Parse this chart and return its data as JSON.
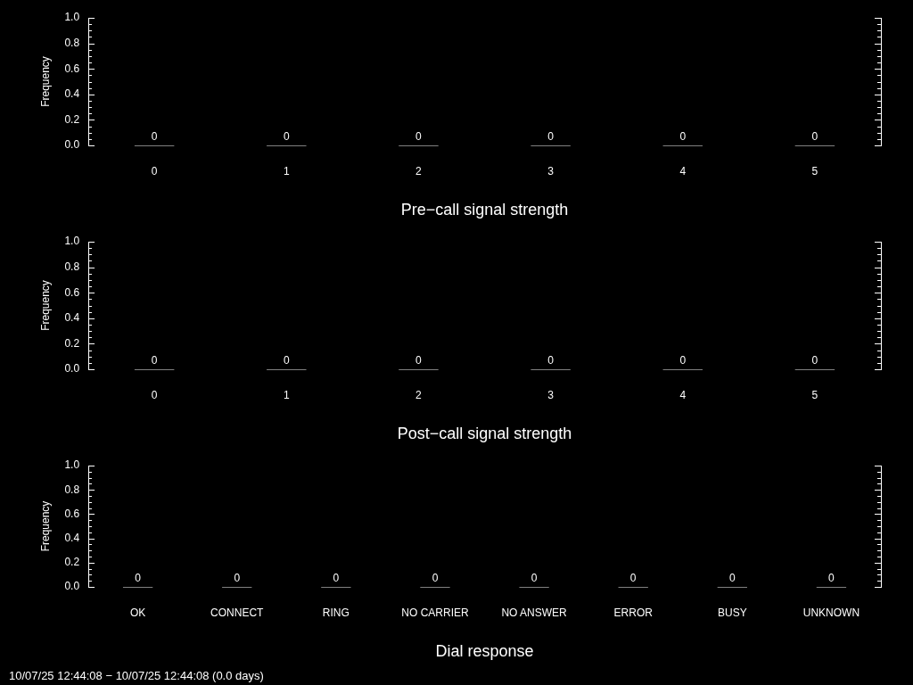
{
  "chart_data": [
    {
      "type": "bar",
      "xlabel": "Pre−call signal strength",
      "ylabel": "Frequency",
      "categories": [
        "0",
        "1",
        "2",
        "3",
        "4",
        "5"
      ],
      "values": [
        0,
        0,
        0,
        0,
        0,
        0
      ],
      "color": "#808080",
      "data_labels": true,
      "grid": false,
      "legend": false,
      "ylim": [
        0,
        1
      ],
      "yticks": [
        {
          "value": 0,
          "label": "0.0"
        },
        {
          "value": 0.05,
          "label": null
        },
        {
          "value": 0.1,
          "label": null
        },
        {
          "value": 0.15,
          "label": null
        },
        {
          "value": 0.2,
          "label": "0.2"
        },
        {
          "value": 0.25,
          "label": null
        },
        {
          "value": 0.3,
          "label": null
        },
        {
          "value": 0.35,
          "label": null
        },
        {
          "value": 0.4,
          "label": "0.4"
        },
        {
          "value": 0.45,
          "label": null
        },
        {
          "value": 0.5,
          "label": null
        },
        {
          "value": 0.55,
          "label": null
        },
        {
          "value": 0.6,
          "label": "0.6"
        },
        {
          "value": 0.65,
          "label": null
        },
        {
          "value": 0.7,
          "label": null
        },
        {
          "value": 0.75,
          "label": null
        },
        {
          "value": 0.8,
          "label": "0.8"
        },
        {
          "value": 0.85,
          "label": null
        },
        {
          "value": 0.9,
          "label": null
        },
        {
          "value": 0.95,
          "label": null
        },
        {
          "value": 1,
          "label": "1.0"
        }
      ]
    },
    {
      "type": "bar",
      "xlabel": "Post−call signal strength",
      "ylabel": "Frequency",
      "categories": [
        "0",
        "1",
        "2",
        "3",
        "4",
        "5"
      ],
      "values": [
        0,
        0,
        0,
        0,
        0,
        0
      ],
      "color": "#808080",
      "data_labels": true,
      "grid": false,
      "legend": false,
      "ylim": [
        0,
        1
      ],
      "yticks": [
        {
          "value": 0,
          "label": "0.0"
        },
        {
          "value": 0.05,
          "label": null
        },
        {
          "value": 0.1,
          "label": null
        },
        {
          "value": 0.15,
          "label": null
        },
        {
          "value": 0.2,
          "label": "0.2"
        },
        {
          "value": 0.25,
          "label": null
        },
        {
          "value": 0.3,
          "label": null
        },
        {
          "value": 0.35,
          "label": null
        },
        {
          "value": 0.4,
          "label": "0.4"
        },
        {
          "value": 0.45,
          "label": null
        },
        {
          "value": 0.5,
          "label": null
        },
        {
          "value": 0.55,
          "label": null
        },
        {
          "value": 0.6,
          "label": "0.6"
        },
        {
          "value": 0.65,
          "label": null
        },
        {
          "value": 0.7,
          "label": null
        },
        {
          "value": 0.75,
          "label": null
        },
        {
          "value": 0.8,
          "label": "0.8"
        },
        {
          "value": 0.85,
          "label": null
        },
        {
          "value": 0.9,
          "label": null
        },
        {
          "value": 0.95,
          "label": null
        },
        {
          "value": 1,
          "label": "1.0"
        }
      ]
    },
    {
      "type": "bar",
      "xlabel": "Dial response",
      "ylabel": "Frequency",
      "categories": [
        "OK",
        "CONNECT",
        "RING",
        "NO CARRIER",
        "NO ANSWER",
        "ERROR",
        "BUSY",
        "UNKNOWN"
      ],
      "values": [
        0,
        0,
        0,
        0,
        0,
        0,
        0,
        0
      ],
      "color": "#808080",
      "data_labels": true,
      "grid": false,
      "legend": false,
      "annotations": [
        "10/07/25 12:44:08 − 10/07/25 12:44:08 (0.0 days)"
      ],
      "ylim": [
        0,
        1
      ],
      "yticks": [
        {
          "value": 0,
          "label": "0.0"
        },
        {
          "value": 0.05,
          "label": null
        },
        {
          "value": 0.1,
          "label": null
        },
        {
          "value": 0.15,
          "label": null
        },
        {
          "value": 0.2,
          "label": "0.2"
        },
        {
          "value": 0.25,
          "label": null
        },
        {
          "value": 0.3,
          "label": null
        },
        {
          "value": 0.35,
          "label": null
        },
        {
          "value": 0.4,
          "label": "0.4"
        },
        {
          "value": 0.45,
          "label": null
        },
        {
          "value": 0.5,
          "label": null
        },
        {
          "value": 0.55,
          "label": null
        },
        {
          "value": 0.6,
          "label": "0.6"
        },
        {
          "value": 0.65,
          "label": null
        },
        {
          "value": 0.7,
          "label": null
        },
        {
          "value": 0.75,
          "label": null
        },
        {
          "value": 0.8,
          "label": "0.8"
        },
        {
          "value": 0.85,
          "label": null
        },
        {
          "value": 0.9,
          "label": null
        },
        {
          "value": 0.95,
          "label": null
        },
        {
          "value": 1,
          "label": "1.0"
        }
      ]
    }
  ]
}
